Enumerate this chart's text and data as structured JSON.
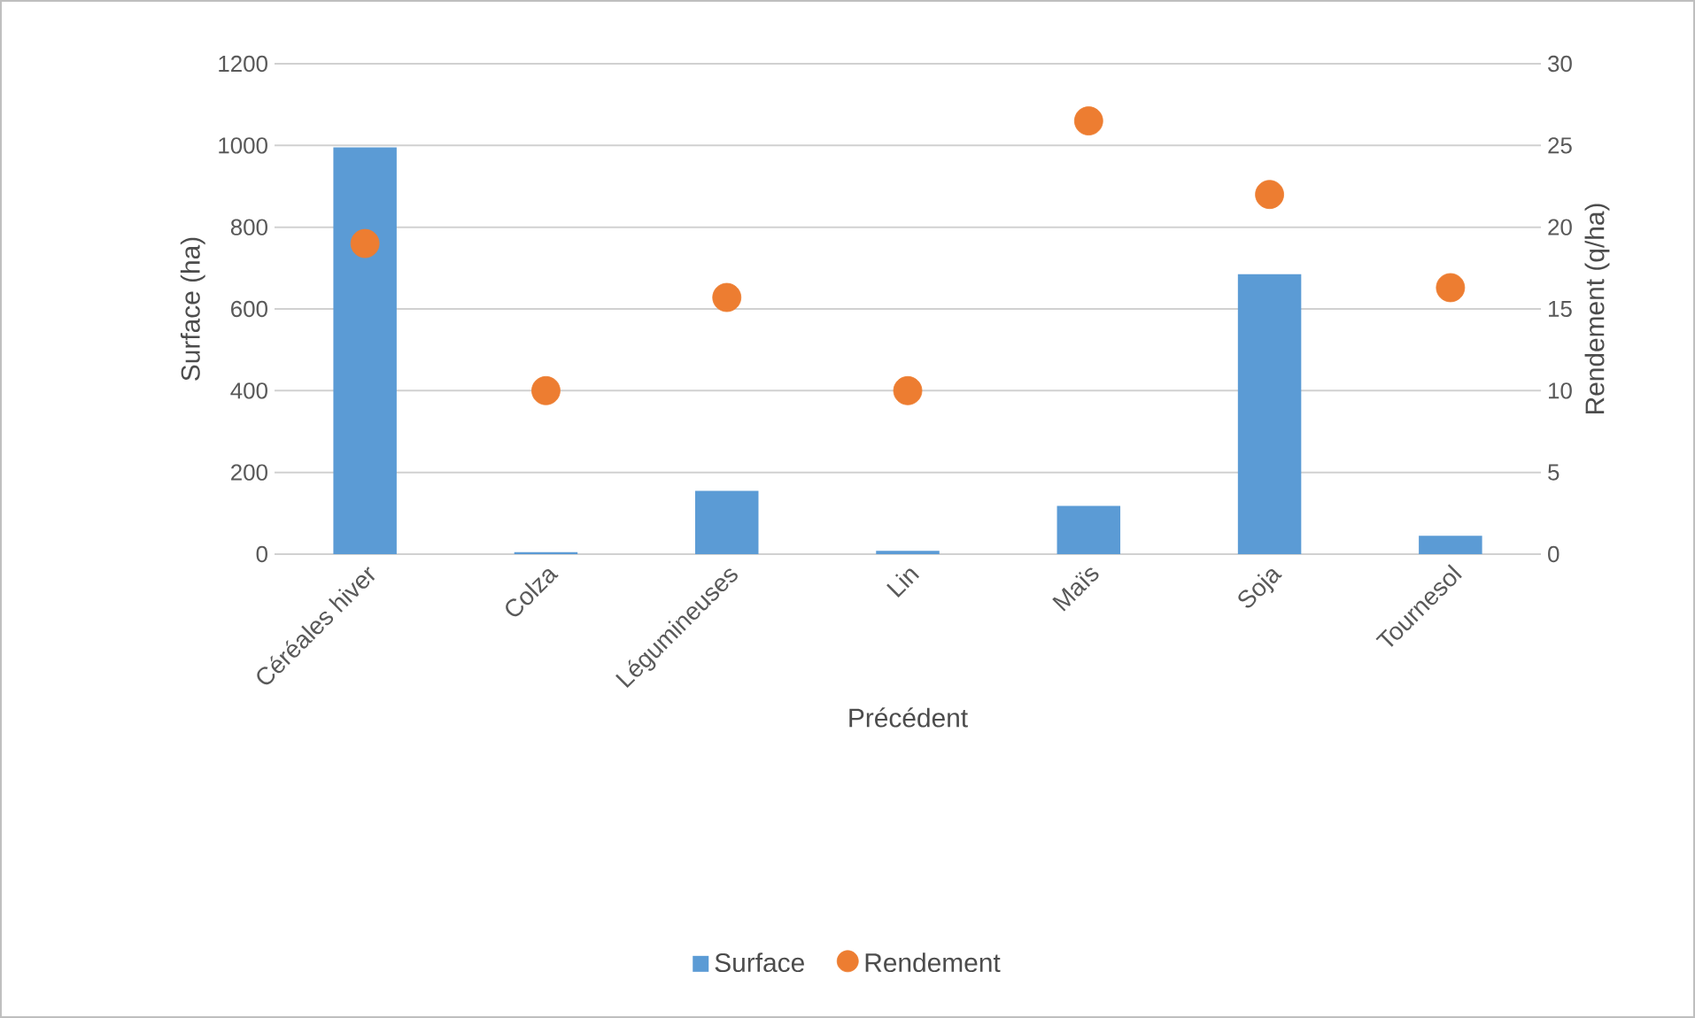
{
  "chart_data": {
    "type": "bar",
    "categories": [
      "Céréales hiver",
      "Colza",
      "Légumineuses",
      "Lin",
      "Maïs",
      "Soja",
      "Tournesol"
    ],
    "xlabel": "Précédent",
    "ylabel": "Surface (ha)",
    "y2label": "Rendement (q/ha)",
    "series": [
      {
        "name": "Surface",
        "color": "#5b9bd5",
        "values": [
          995,
          5,
          155,
          8,
          118,
          685,
          45
        ]
      },
      {
        "name": "Rendement",
        "type": "scatter",
        "axis": "y2",
        "color": "#ed7d31",
        "marker": "circle",
        "values": [
          19.0,
          10.0,
          15.7,
          10.0,
          26.5,
          22.0,
          16.3
        ]
      }
    ],
    "ylim": [
      0,
      1200
    ],
    "yticks": [
      0,
      200,
      400,
      600,
      800,
      1000,
      1200
    ],
    "y2lim": [
      0,
      30
    ],
    "y2ticks": [
      0,
      5,
      10,
      15,
      20,
      25,
      30
    ],
    "grid": "y",
    "legend": "bottom"
  }
}
